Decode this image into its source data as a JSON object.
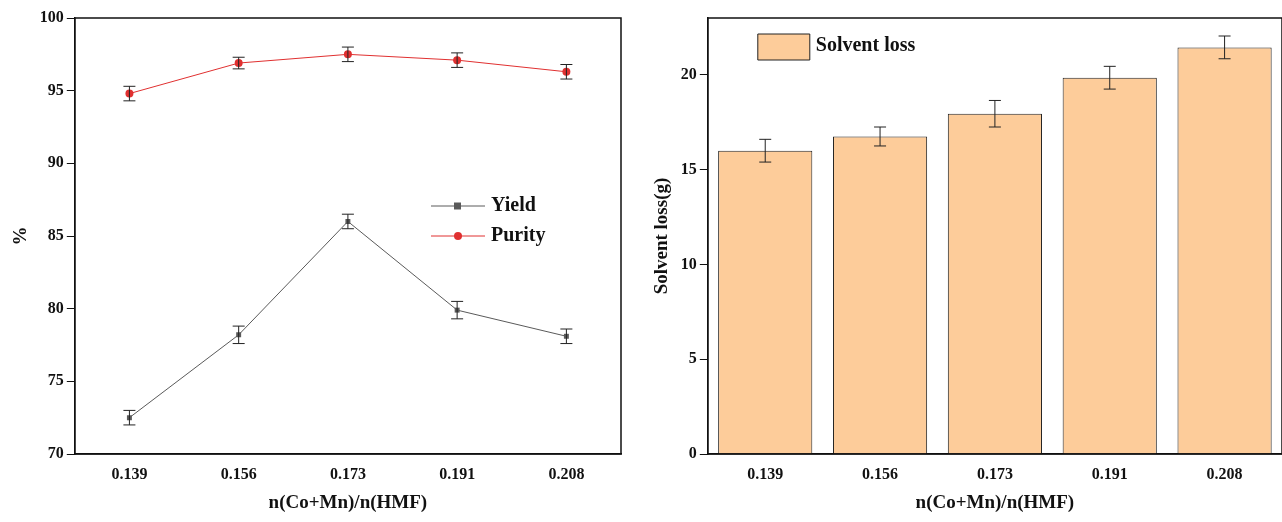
{
  "chart_data": [
    {
      "type": "line",
      "xlabel": "n(Co+Mn)/n(HMF)",
      "ylabel": "%",
      "categories": [
        "0.139",
        "0.156",
        "0.173",
        "0.191",
        "0.208"
      ],
      "ylim": [
        70,
        100
      ],
      "yticks": [
        70,
        75,
        80,
        85,
        90,
        95,
        100
      ],
      "grid": false,
      "legend": "right",
      "series": [
        {
          "name": "Yield",
          "color": "#5a5a5a",
          "marker": "square",
          "values": [
            72.5,
            78.2,
            86.0,
            79.9,
            78.1
          ],
          "errors": [
            0.5,
            0.6,
            0.5,
            0.6,
            0.5
          ]
        },
        {
          "name": "Purity",
          "color": "#e03030",
          "marker": "circle",
          "values": [
            94.8,
            96.9,
            97.5,
            97.1,
            96.3
          ],
          "errors": [
            0.5,
            0.4,
            0.5,
            0.5,
            0.5
          ]
        }
      ]
    },
    {
      "type": "bar",
      "xlabel": "n(Co+Mn)/n(HMF)",
      "ylabel": "Solvent loss(g)",
      "categories": [
        "0.139",
        "0.156",
        "0.173",
        "0.191",
        "0.208"
      ],
      "ylim": [
        0,
        23
      ],
      "yticks": [
        0,
        5,
        10,
        15,
        20
      ],
      "grid": false,
      "legend": "top left",
      "series": [
        {
          "name": "Solvent loss",
          "color": "#fdcc9a",
          "values": [
            16.0,
            16.75,
            17.95,
            19.85,
            21.45
          ],
          "errors": [
            0.6,
            0.5,
            0.7,
            0.6,
            0.6
          ]
        }
      ]
    }
  ]
}
